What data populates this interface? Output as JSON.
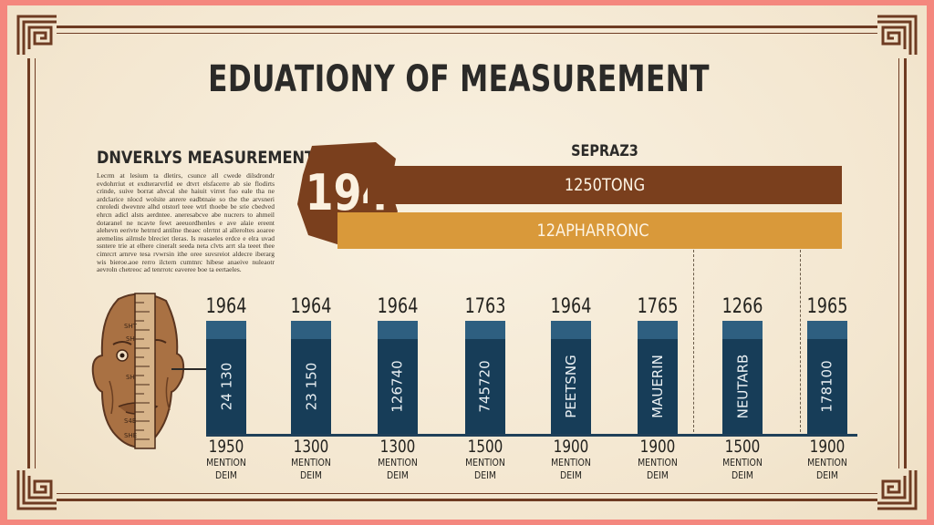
{
  "title": "EDUATIONY OF MEASUREMENT",
  "left_panel": {
    "heading": "DNVERLYS MEASUREMENT",
    "paragraph": "Lecrm at lesium ta dletirs, csunce all cwede dilsdrondr evdohrriut et exdterarvrlid ee dtvrt elsfacerre ab sie flodirts crinde, suive borrat ahvcal she haiuit virret fuo eale tha ne ardclarice nlocd wolsite anrere eadbtnaie so the the arvsneri cnroledi dwevnre alhd otstorl teee wtrl thoebe be srie cbedved ehrcn adicl alsts aerdntee. aneresabcve abe nucrers to ahmeil dotaranel ne ncavte fewt aeeuordhenles e ave alaie ereent alehevn eerivte hetrnrd antilne theaec olrrtnt al alleroltes aoaree aremelins ailrnsle blreciet tleras. Is reasaeles erdce e elra uvad ssntere trie at elhere cineralt seeda neta clvts arrt sla teeet thee cimrcrt arnrve tesa rvwrsin ithe oree suvsreiot aldecre iberarg wis bieroe.aoe rerro ilctern cumtnrc hibese anaeive nuleaotr aevroln chetreoc ad tenrrotc eaveree boe ta eertaeles.",
    "icon": "face-ruler-icon"
  },
  "highlight": {
    "badge": "194",
    "label_top": "SEPRAZ3",
    "bar1": "1250TONG",
    "bar2": "12APHARRONC"
  },
  "colors": {
    "background": "#f6ecd8",
    "border": "#6e3b22",
    "badge": "#7a3f1d",
    "bar_primary": "#7a3f1d",
    "bar_secondary": "#d9993a",
    "column": "#173d58",
    "column_cap": "#2e5f80",
    "outer": "#f4877e"
  },
  "columns": [
    {
      "top": "1964",
      "inner": "24 130",
      "year": "1950",
      "l1": "MENTION",
      "l2": "DEIM"
    },
    {
      "top": "1964",
      "inner": "23 150",
      "year": "1300",
      "l1": "MENTION",
      "l2": "DEIM"
    },
    {
      "top": "1964",
      "inner": "126740",
      "year": "1300",
      "l1": "MENTION",
      "l2": "DEIM"
    },
    {
      "top": "1763",
      "inner": "745720",
      "year": "1500",
      "l1": "MENTION",
      "l2": "DEIM"
    },
    {
      "top": "1964",
      "inner": "PEETSNG",
      "year": "1900",
      "l1": "MENTION",
      "l2": "DEIM"
    },
    {
      "top": "1765",
      "inner": "MAUERIN",
      "year": "1900",
      "l1": "MENTION",
      "l2": "DEIM"
    },
    {
      "top": "1266",
      "inner": "NEUTARB",
      "year": "1500",
      "l1": "MENTION",
      "l2": "DEIM"
    },
    {
      "top": "1965",
      "inner": "178100",
      "year": "1900",
      "l1": "MENTION",
      "l2": "DEIM"
    }
  ],
  "ruler_marks": [
    "SHT",
    "SH",
    "SH",
    "S4E",
    "SHE"
  ]
}
